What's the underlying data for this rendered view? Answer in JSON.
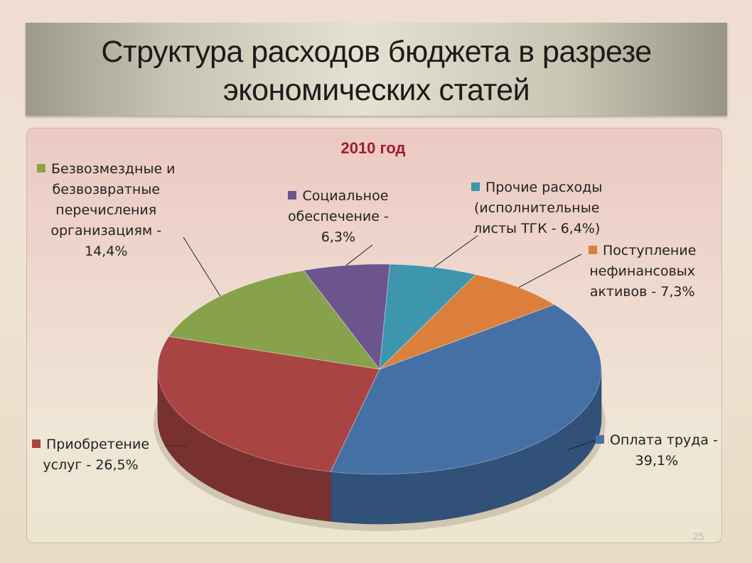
{
  "slide": {
    "title_line1": "Структура расходов бюджета в разрезе",
    "title_line2": "экономических статей",
    "page_number": "25"
  },
  "chart_data": {
    "type": "pie",
    "title": "2010 год",
    "slices": [
      {
        "label_lines": [
          "Оплата труда -",
          "39,1%"
        ],
        "value": 39.1,
        "color": "#4470a6"
      },
      {
        "label_lines": [
          "Приобретение",
          "услуг - 26,5%"
        ],
        "value": 26.5,
        "color": "#a84442"
      },
      {
        "label_lines": [
          "Безвозмездные и",
          "безвозвратные",
          "перечисления",
          "организациям -",
          "14,4%"
        ],
        "value": 14.4,
        "color": "#87a24a"
      },
      {
        "label_lines": [
          "Социальное",
          "обеспечение -",
          "6,3%"
        ],
        "value": 6.3,
        "color": "#6c558c"
      },
      {
        "label_lines": [
          "Прочие расходы",
          "(исполнительные",
          "листы ТГК - 6,4%)"
        ],
        "value": 6.4,
        "color": "#3e95ae"
      },
      {
        "label_lines": [
          "Поступление",
          "нефинансовых",
          "активов - 7,3%"
        ],
        "value": 7.3,
        "color": "#dc7f3a"
      }
    ]
  }
}
